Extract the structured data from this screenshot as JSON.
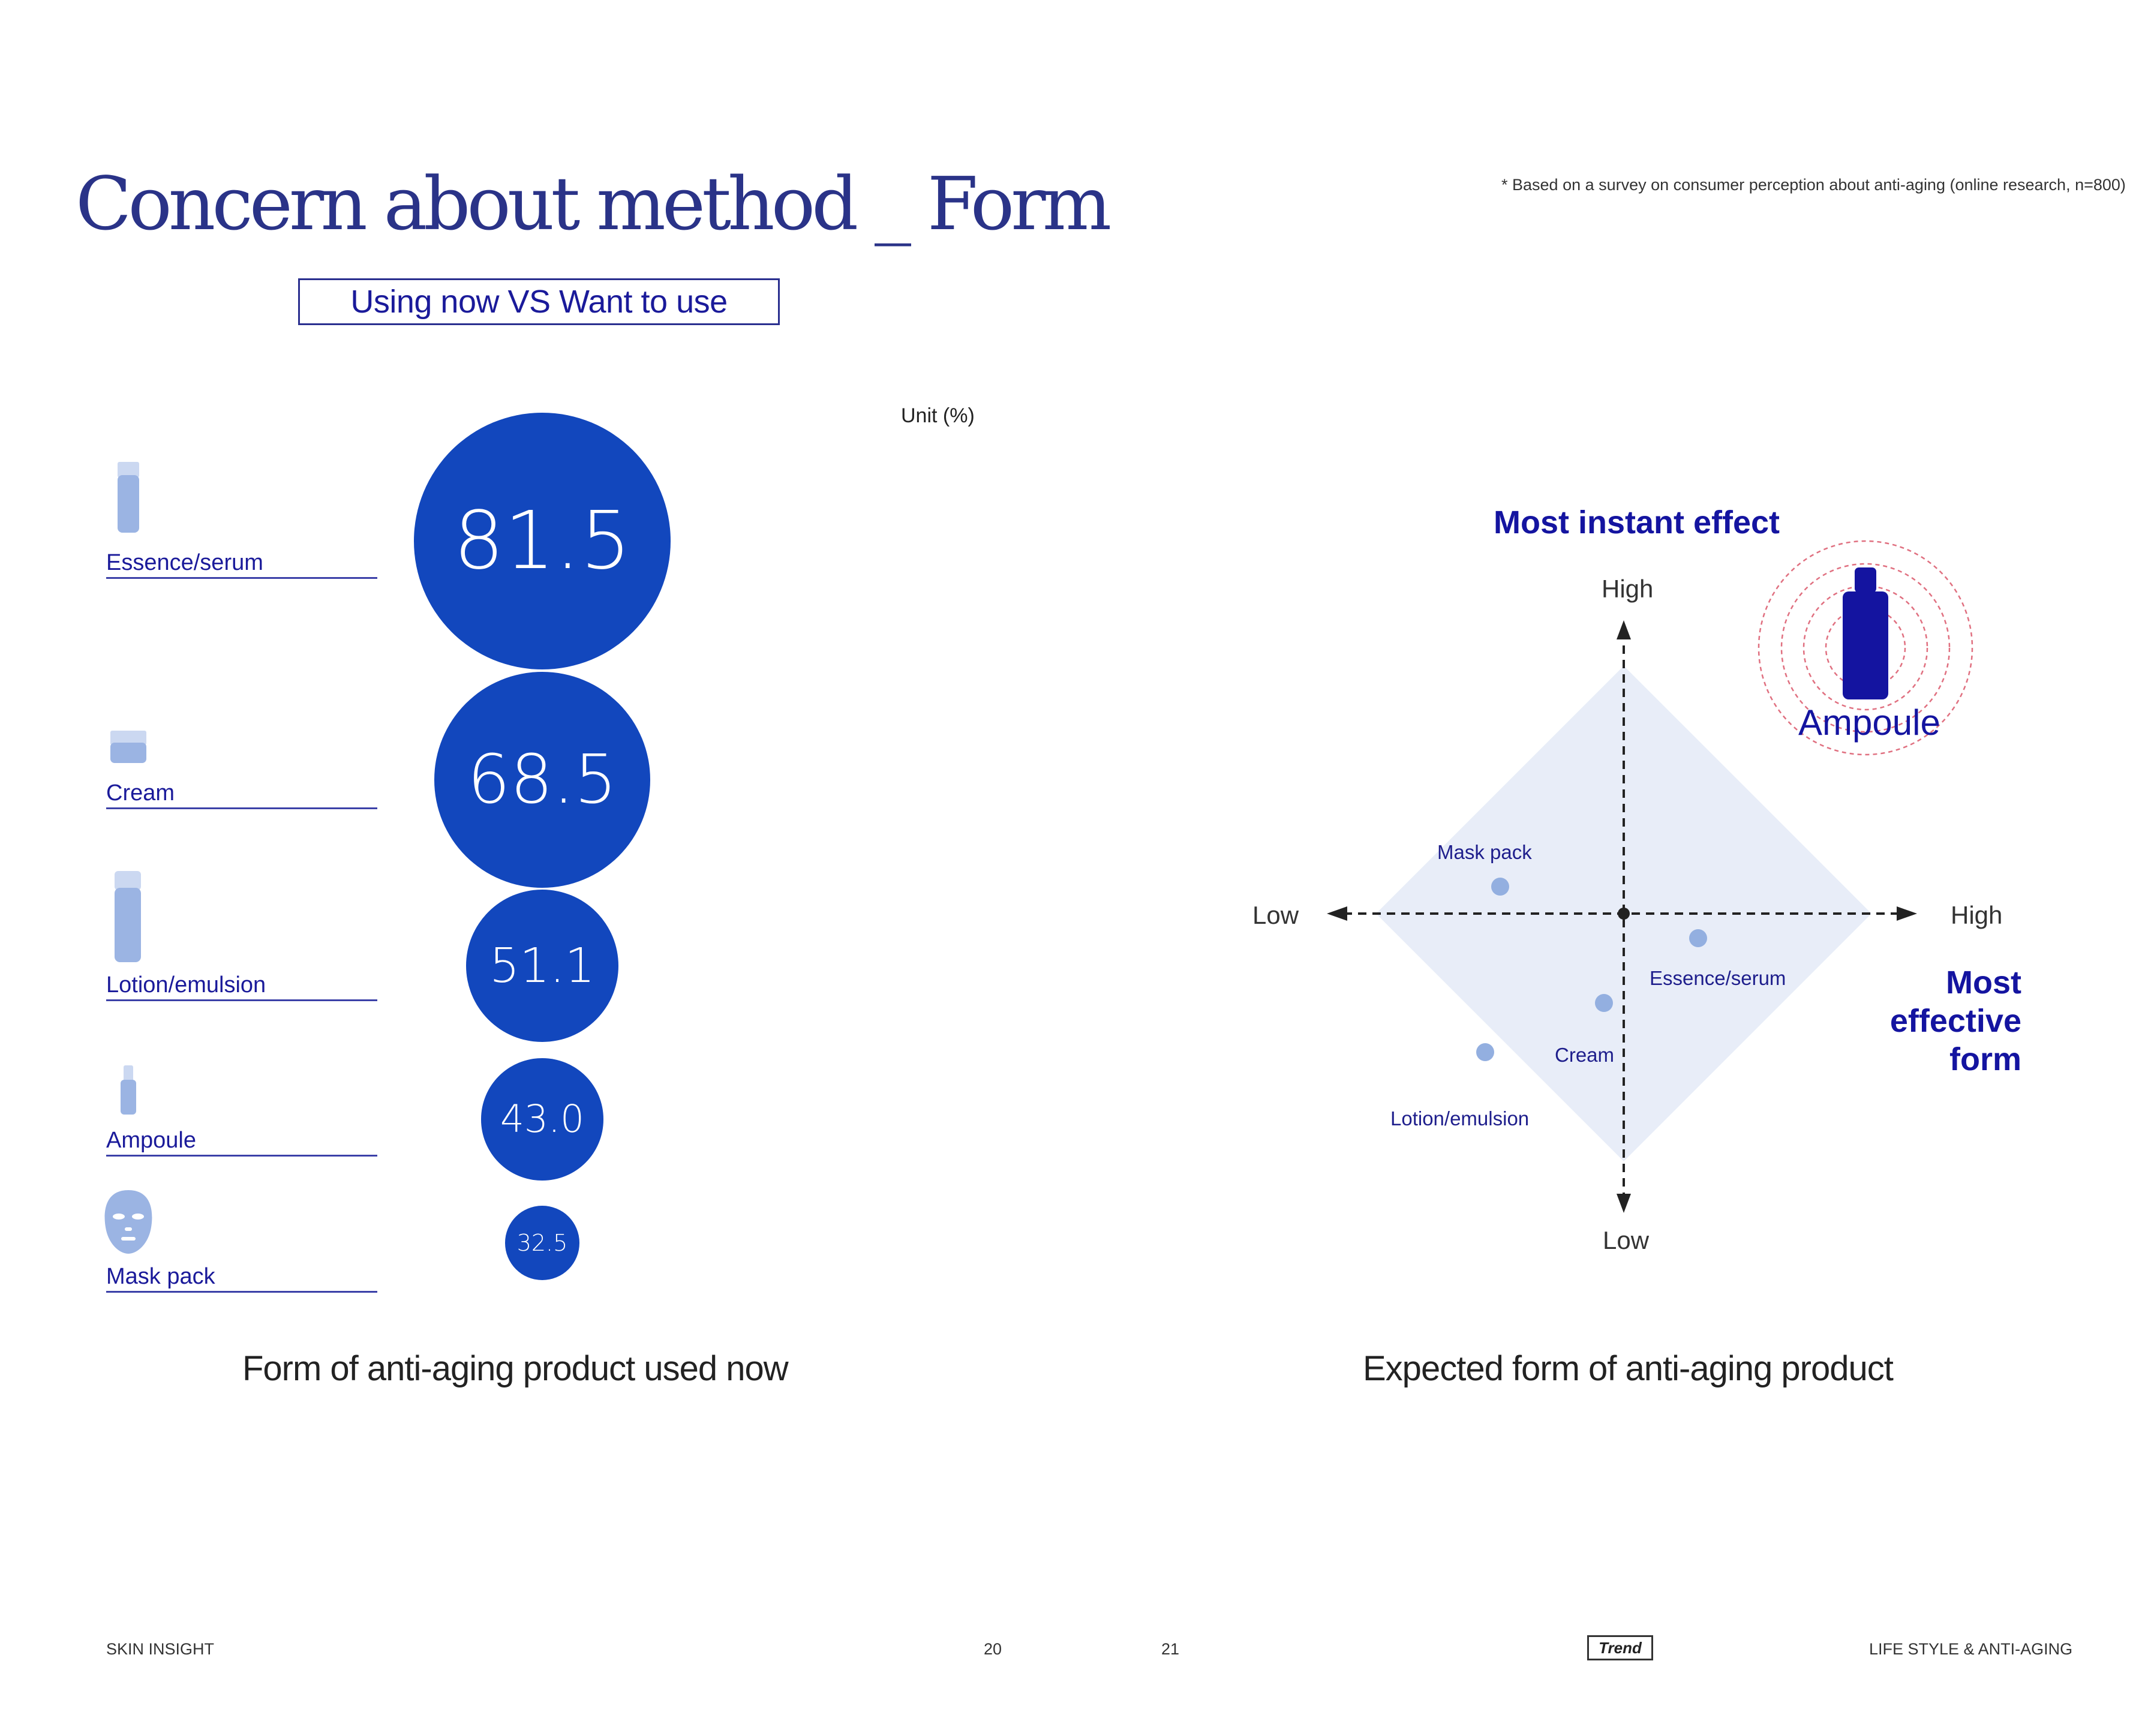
{
  "header": {
    "title": "Concern about method _ Form",
    "survey_note": "* Based on a survey on consumer perception about anti-aging (online research, n=800)",
    "subtitle": "Using now VS Want to use"
  },
  "left_chart": {
    "unit": "Unit (%)",
    "caption": "Form of anti-aging product used now",
    "categories": [
      "Essence/serum",
      "Cream",
      "Lotion/emulsion",
      "Ampoule",
      "Mask pack"
    ],
    "value_labels": [
      "81.5",
      "68.5",
      "51.1",
      "43.0",
      "32.5"
    ],
    "icons": [
      "serum-bottle-icon",
      "cream-jar-icon",
      "lotion-bottle-icon",
      "ampoule-icon",
      "face-mask-icon"
    ]
  },
  "right_chart": {
    "caption": "Expected form of anti-aging product",
    "y_axis_title": "Most instant effect",
    "x_axis_title": "Most effective form",
    "y_high": "High",
    "y_low": "Low",
    "x_high": "High",
    "x_low": "Low",
    "highlight": "Ampoule",
    "point_labels": [
      "Mask pack",
      "Essence/serum",
      "Cream",
      "Lotion/emulsion"
    ]
  },
  "chart_data": [
    {
      "type": "bubble",
      "title": "Form of anti-aging product used now",
      "unit": "Unit (%)",
      "categories": [
        "Essence/serum",
        "Cream",
        "Lotion/emulsion",
        "Ampoule",
        "Mask pack"
      ],
      "values": [
        81.5,
        68.5,
        51.1,
        43.0,
        32.5
      ]
    },
    {
      "type": "scatter",
      "title": "Expected form of anti-aging product",
      "xlabel": "Most effective form",
      "ylabel": "Most instant effect",
      "xlim": [
        -1,
        1
      ],
      "ylim": [
        -1,
        1
      ],
      "points": [
        {
          "label": "Mask pack",
          "x": -0.5,
          "y": 0.11
        },
        {
          "label": "Essence/serum",
          "x": 0.3,
          "y": -0.1
        },
        {
          "label": "Cream",
          "x": -0.08,
          "y": -0.36
        },
        {
          "label": "Lotion/emulsion",
          "x": -0.56,
          "y": -0.56
        },
        {
          "label": "Ampoule",
          "x": 0.81,
          "y": 0.84
        }
      ]
    }
  ],
  "footer": {
    "left": "SKIN INSIGHT",
    "page_left": "20",
    "page_right": "21",
    "section": "Trend",
    "right": "LIFE STYLE & ANTI-AGING"
  },
  "colors": {
    "title": "#2a3388",
    "accent": "#1414a0",
    "bubble": "#1247bd",
    "icon": "#9bb4e3",
    "diamond": "#e8edf8",
    "ripple": "#e07080"
  }
}
